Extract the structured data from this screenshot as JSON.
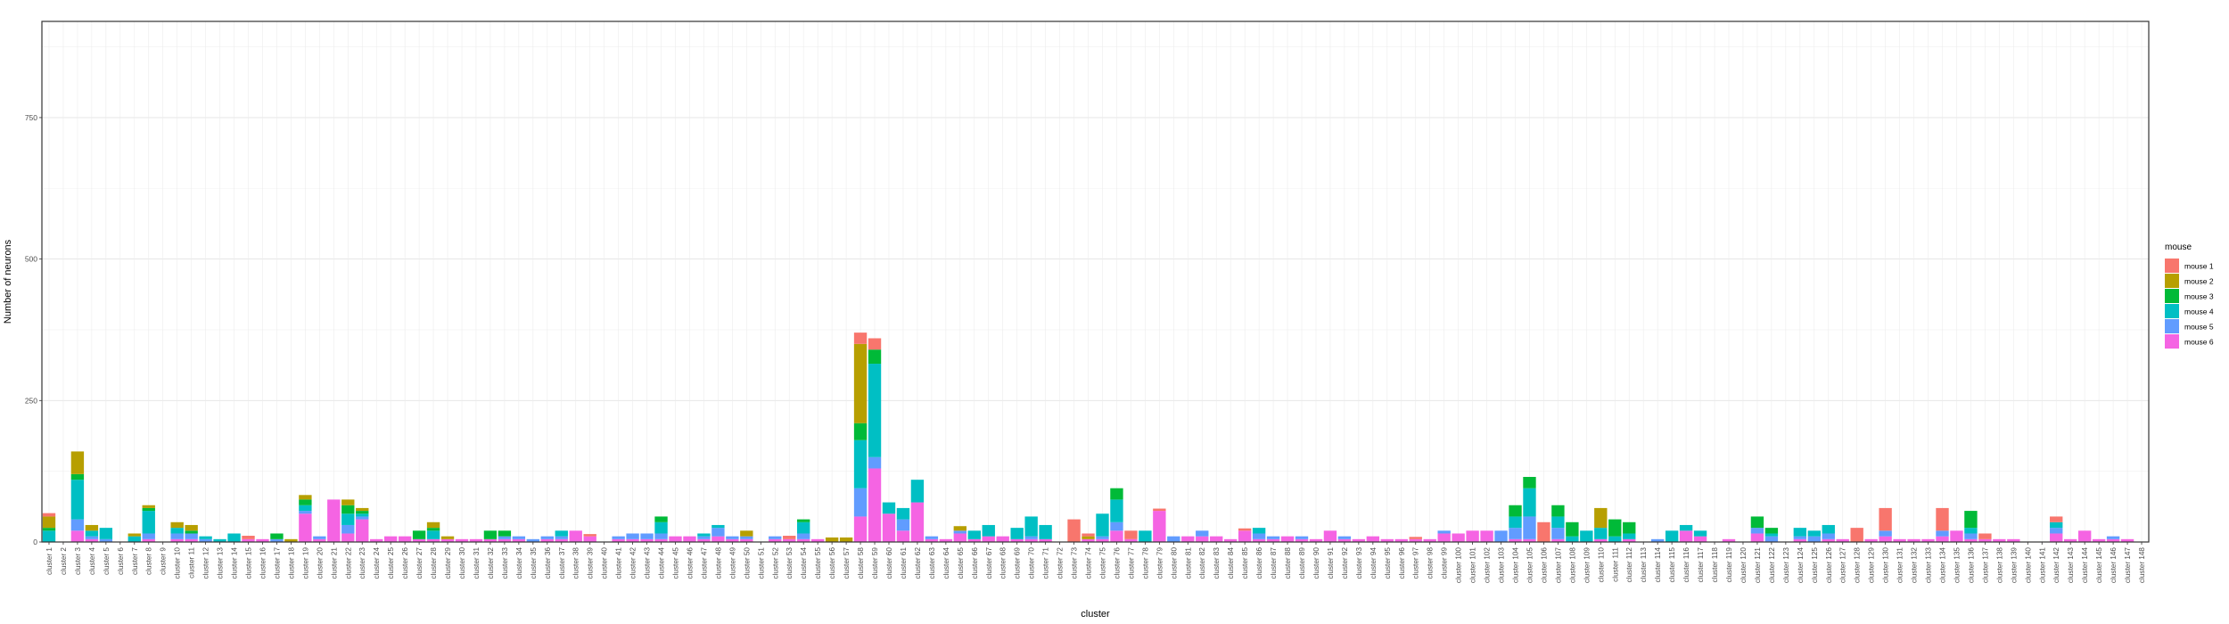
{
  "chart_data": {
    "type": "bar",
    "stacked": true,
    "title": "",
    "xlabel": "cluster",
    "ylabel": "Number of neurons",
    "ylim": [
      0,
      920
    ],
    "yticks": [
      0,
      250,
      500,
      750
    ],
    "grid": true,
    "legend": {
      "title": "mouse",
      "placement": "right"
    },
    "categories": [
      "cluster 1",
      "cluster 2",
      "cluster 3",
      "cluster 4",
      "cluster 5",
      "cluster 6",
      "cluster 7",
      "cluster 8",
      "cluster 9",
      "cluster 10",
      "cluster 11",
      "cluster 12",
      "cluster 13",
      "cluster 14",
      "cluster 15",
      "cluster 16",
      "cluster 17",
      "cluster 18",
      "cluster 19",
      "cluster 20",
      "cluster 21",
      "cluster 22",
      "cluster 23",
      "cluster 24",
      "cluster 25",
      "cluster 26",
      "cluster 27",
      "cluster 28",
      "cluster 29",
      "cluster 30",
      "cluster 31",
      "cluster 32",
      "cluster 33",
      "cluster 34",
      "cluster 35",
      "cluster 36",
      "cluster 37",
      "cluster 38",
      "cluster 39",
      "cluster 40",
      "cluster 41",
      "cluster 42",
      "cluster 43",
      "cluster 44",
      "cluster 45",
      "cluster 46",
      "cluster 47",
      "cluster 48",
      "cluster 49",
      "cluster 50",
      "cluster 51",
      "cluster 52",
      "cluster 53",
      "cluster 54",
      "cluster 55",
      "cluster 56",
      "cluster 57",
      "cluster 58",
      "cluster 59",
      "cluster 60",
      "cluster 61",
      "cluster 62",
      "cluster 63",
      "cluster 64",
      "cluster 65",
      "cluster 66",
      "cluster 67",
      "cluster 68",
      "cluster 69",
      "cluster 70",
      "cluster 71",
      "cluster 72",
      "cluster 73",
      "cluster 74",
      "cluster 75",
      "cluster 76",
      "cluster 77",
      "cluster 78",
      "cluster 79",
      "cluster 80",
      "cluster 81",
      "cluster 82",
      "cluster 83",
      "cluster 84",
      "cluster 85",
      "cluster 86",
      "cluster 87",
      "cluster 88",
      "cluster 89",
      "cluster 90",
      "cluster 91",
      "cluster 92",
      "cluster 93",
      "cluster 94",
      "cluster 95",
      "cluster 96",
      "cluster 97",
      "cluster 98",
      "cluster 99",
      "cluster 100",
      "cluster 101",
      "cluster 102",
      "cluster 103",
      "cluster 104",
      "cluster 105",
      "cluster 106",
      "cluster 107",
      "cluster 108",
      "cluster 109",
      "cluster 110",
      "cluster 111",
      "cluster 112",
      "cluster 113",
      "cluster 114",
      "cluster 115",
      "cluster 116",
      "cluster 117",
      "cluster 118",
      "cluster 119",
      "cluster 120",
      "cluster 121",
      "cluster 122",
      "cluster 123",
      "cluster 124",
      "cluster 125",
      "cluster 126",
      "cluster 127",
      "cluster 128",
      "cluster 129",
      "cluster 130",
      "cluster 131",
      "cluster 132",
      "cluster 133",
      "cluster 134",
      "cluster 135",
      "cluster 136",
      "cluster 137",
      "cluster 138",
      "cluster 139",
      "cluster 140",
      "cluster 141",
      "cluster 142",
      "cluster 143",
      "cluster 144",
      "cluster 145",
      "cluster 146",
      "cluster 147",
      "cluster 148"
    ],
    "series": [
      {
        "name": "mouse 1",
        "color": "#F8766D",
        "values": [
          6,
          0,
          0,
          0,
          0,
          0,
          0,
          0,
          0,
          0,
          0,
          0,
          0,
          0,
          6,
          0,
          0,
          0,
          0,
          0,
          0,
          0,
          0,
          0,
          0,
          0,
          0,
          0,
          0,
          0,
          0,
          0,
          0,
          0,
          0,
          0,
          0,
          0,
          4,
          0,
          0,
          0,
          0,
          0,
          0,
          0,
          0,
          0,
          0,
          0,
          0,
          0,
          6,
          0,
          0,
          0,
          0,
          20,
          20,
          0,
          0,
          0,
          0,
          0,
          0,
          0,
          0,
          0,
          0,
          0,
          0,
          0,
          40,
          5,
          0,
          0,
          15,
          0,
          4,
          0,
          0,
          0,
          0,
          0,
          4,
          0,
          0,
          0,
          0,
          0,
          0,
          0,
          0,
          0,
          0,
          0,
          4,
          0,
          0,
          0,
          0,
          0,
          0,
          0,
          0,
          35,
          0,
          0,
          0,
          0,
          0,
          0,
          0,
          0,
          0,
          0,
          0,
          0,
          0,
          0,
          0,
          0,
          0,
          0,
          0,
          0,
          0,
          25,
          0,
          40,
          0,
          0,
          0,
          40,
          0,
          0,
          10,
          0,
          0,
          0,
          0,
          10,
          0,
          0,
          0,
          0,
          0,
          0
        ]
      },
      {
        "name": "mouse 2",
        "color": "#B79F00",
        "values": [
          20,
          0,
          40,
          10,
          0,
          0,
          5,
          5,
          0,
          10,
          10,
          0,
          0,
          0,
          0,
          0,
          0,
          5,
          8,
          0,
          0,
          10,
          5,
          0,
          0,
          0,
          0,
          10,
          5,
          0,
          0,
          0,
          0,
          0,
          0,
          0,
          0,
          0,
          0,
          0,
          0,
          0,
          0,
          0,
          0,
          0,
          0,
          0,
          0,
          10,
          0,
          0,
          0,
          0,
          0,
          8,
          8,
          140,
          0,
          0,
          0,
          0,
          0,
          0,
          8,
          0,
          0,
          0,
          0,
          0,
          0,
          0,
          0,
          5,
          0,
          0,
          0,
          0,
          0,
          0,
          0,
          0,
          0,
          0,
          0,
          0,
          0,
          0,
          0,
          0,
          0,
          0,
          0,
          0,
          0,
          0,
          0,
          0,
          0,
          0,
          0,
          0,
          0,
          0,
          0,
          0,
          0,
          0,
          0,
          35,
          0,
          0,
          0,
          0,
          0,
          0,
          0,
          0,
          0,
          0,
          0,
          0,
          0,
          0,
          0,
          0,
          0,
          0,
          0,
          0,
          0,
          0,
          0,
          0,
          0,
          0,
          0,
          0,
          0,
          0,
          0,
          0,
          0,
          0,
          0,
          0,
          0,
          0
        ]
      },
      {
        "name": "mouse 3",
        "color": "#00BA38",
        "values": [
          5,
          0,
          10,
          0,
          0,
          0,
          0,
          5,
          0,
          0,
          5,
          0,
          0,
          0,
          0,
          0,
          10,
          0,
          10,
          0,
          0,
          15,
          5,
          0,
          0,
          0,
          15,
          5,
          0,
          0,
          0,
          15,
          10,
          0,
          0,
          0,
          0,
          0,
          0,
          0,
          0,
          0,
          0,
          10,
          0,
          0,
          0,
          0,
          0,
          0,
          0,
          0,
          0,
          5,
          0,
          0,
          0,
          30,
          25,
          0,
          0,
          0,
          0,
          0,
          0,
          0,
          0,
          0,
          0,
          0,
          0,
          0,
          0,
          0,
          0,
          20,
          0,
          0,
          0,
          0,
          0,
          0,
          0,
          0,
          0,
          0,
          0,
          0,
          0,
          0,
          0,
          0,
          0,
          0,
          0,
          0,
          0,
          0,
          0,
          0,
          0,
          0,
          0,
          20,
          20,
          0,
          20,
          25,
          0,
          0,
          30,
          20,
          0,
          0,
          0,
          0,
          0,
          0,
          0,
          0,
          20,
          10,
          0,
          0,
          0,
          0,
          0,
          0,
          0,
          0,
          0,
          0,
          0,
          0,
          0,
          30,
          0,
          0,
          0,
          0,
          0,
          0,
          0,
          0,
          0,
          0,
          0,
          0
        ]
      },
      {
        "name": "mouse 4",
        "color": "#00BFC4",
        "values": [
          20,
          0,
          70,
          10,
          20,
          0,
          10,
          40,
          0,
          10,
          0,
          5,
          5,
          15,
          0,
          0,
          0,
          0,
          10,
          0,
          0,
          20,
          5,
          0,
          0,
          0,
          0,
          15,
          0,
          0,
          0,
          0,
          0,
          0,
          0,
          0,
          10,
          0,
          0,
          0,
          0,
          0,
          0,
          20,
          0,
          0,
          5,
          5,
          0,
          0,
          0,
          0,
          0,
          20,
          0,
          0,
          0,
          85,
          165,
          20,
          20,
          40,
          0,
          0,
          0,
          15,
          20,
          0,
          20,
          35,
          25,
          0,
          0,
          0,
          40,
          40,
          0,
          20,
          0,
          0,
          0,
          0,
          0,
          0,
          0,
          10,
          0,
          0,
          0,
          0,
          0,
          0,
          0,
          0,
          0,
          0,
          0,
          0,
          0,
          0,
          0,
          0,
          0,
          20,
          50,
          0,
          20,
          10,
          20,
          20,
          10,
          10,
          0,
          0,
          20,
          10,
          10,
          0,
          0,
          0,
          0,
          5,
          0,
          15,
          10,
          15,
          0,
          0,
          0,
          0,
          0,
          0,
          0,
          0,
          0,
          10,
          0,
          0,
          0,
          0,
          0,
          10,
          0,
          0,
          0,
          0,
          0,
          0
        ]
      },
      {
        "name": "mouse 5",
        "color": "#619CFF",
        "values": [
          0,
          0,
          20,
          5,
          5,
          0,
          0,
          10,
          0,
          10,
          10,
          5,
          0,
          0,
          0,
          0,
          5,
          0,
          5,
          5,
          0,
          15,
          5,
          0,
          0,
          0,
          0,
          0,
          0,
          0,
          0,
          0,
          5,
          5,
          5,
          5,
          5,
          0,
          0,
          0,
          5,
          10,
          10,
          10,
          0,
          0,
          5,
          15,
          5,
          5,
          0,
          5,
          0,
          10,
          0,
          0,
          0,
          50,
          20,
          0,
          20,
          0,
          5,
          0,
          5,
          0,
          0,
          0,
          0,
          5,
          0,
          0,
          0,
          0,
          5,
          15,
          0,
          0,
          0,
          10,
          0,
          10,
          0,
          0,
          0,
          10,
          5,
          0,
          5,
          0,
          0,
          5,
          0,
          0,
          0,
          0,
          0,
          0,
          5,
          0,
          0,
          0,
          20,
          20,
          40,
          0,
          20,
          0,
          0,
          0,
          0,
          0,
          0,
          5,
          0,
          0,
          0,
          0,
          0,
          0,
          10,
          10,
          0,
          5,
          10,
          10,
          0,
          0,
          0,
          10,
          0,
          0,
          0,
          10,
          0,
          10,
          0,
          0,
          0,
          0,
          0,
          10,
          0,
          0,
          0,
          5,
          0,
          0
        ]
      },
      {
        "name": "mouse 6",
        "color": "#F564E3",
        "values": [
          0,
          0,
          20,
          5,
          0,
          0,
          0,
          5,
          0,
          5,
          5,
          0,
          0,
          0,
          5,
          5,
          0,
          0,
          50,
          5,
          75,
          15,
          40,
          5,
          10,
          10,
          5,
          5,
          5,
          5,
          5,
          5,
          5,
          5,
          0,
          5,
          5,
          20,
          10,
          0,
          5,
          5,
          5,
          5,
          10,
          10,
          5,
          10,
          5,
          5,
          0,
          5,
          5,
          5,
          5,
          0,
          0,
          45,
          130,
          50,
          20,
          70,
          5,
          5,
          15,
          5,
          10,
          10,
          5,
          5,
          5,
          0,
          0,
          5,
          5,
          20,
          5,
          0,
          55,
          0,
          10,
          10,
          10,
          5,
          20,
          5,
          5,
          10,
          5,
          5,
          20,
          5,
          5,
          10,
          5,
          5,
          5,
          5,
          15,
          15,
          20,
          20,
          0,
          5,
          5,
          0,
          5,
          0,
          0,
          5,
          0,
          5,
          0,
          0,
          0,
          20,
          10,
          0,
          5,
          0,
          15,
          0,
          0,
          5,
          0,
          5,
          5,
          0,
          5,
          10,
          5,
          5,
          5,
          10,
          20,
          5,
          5,
          5,
          5,
          0,
          0,
          15,
          5,
          20,
          5,
          5,
          5,
          0
        ]
      }
    ]
  }
}
